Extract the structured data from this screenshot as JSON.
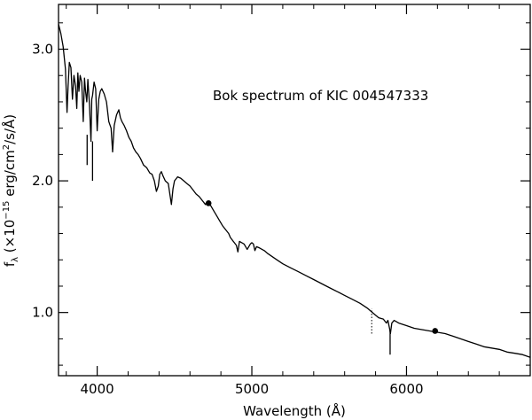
{
  "chart_data": {
    "type": "line",
    "title": "",
    "annotation": "Bok spectrum of KIC 004547333",
    "xlabel": "Wavelength (Å)",
    "ylabel": {
      "prefix": "f",
      "sub": "λ",
      "open": " (×10",
      "exp": "−15",
      "middle": " erg/cm",
      "exp2": "2",
      "suffix": "/s/Å)"
    },
    "xlim": [
      3750,
      6800
    ],
    "ylim": [
      0.52,
      3.34
    ],
    "xticks": [
      4000,
      5000,
      6000
    ],
    "xtick_labels": [
      "4000",
      "5000",
      "6000"
    ],
    "yticks": [
      1.0,
      2.0,
      3.0
    ],
    "ytick_labels": [
      "1.0",
      "2.0",
      "3.0"
    ],
    "series": [
      {
        "x": [
          3750,
          3765,
          3780,
          3795,
          3805,
          3812,
          3820,
          3830,
          3840,
          3850,
          3860,
          3868,
          3875,
          3882,
          3890,
          3900,
          3910,
          3918,
          3925,
          3933,
          3940,
          3950,
          3960,
          3965,
          3970,
          3980,
          3990,
          4000,
          4010,
          4020,
          4030,
          4045,
          4060,
          4075,
          4090,
          4100,
          4110,
          4125,
          4140,
          4150,
          4160,
          4175,
          4190,
          4205,
          4220,
          4235,
          4250,
          4265,
          4280,
          4300,
          4320,
          4340,
          4355,
          4370,
          4383,
          4395,
          4405,
          4415,
          4425,
          4440,
          4460,
          4480,
          4490,
          4500,
          4520,
          4540,
          4560,
          4580,
          4600,
          4620,
          4640,
          4660,
          4680,
          4700,
          4710,
          4730,
          4750,
          4770,
          4790,
          4810,
          4830,
          4850,
          4861,
          4880,
          4900,
          4910,
          4920,
          4935,
          4950,
          4970,
          4990,
          5000,
          5010,
          5020,
          5030,
          5050,
          5080,
          5100,
          5150,
          5200,
          5250,
          5300,
          5350,
          5400,
          5450,
          5500,
          5550,
          5600,
          5650,
          5700,
          5750,
          5780,
          5800,
          5820,
          5850,
          5870,
          5880,
          5890,
          5896,
          5905,
          5920,
          5950,
          6000,
          6050,
          6100,
          6150,
          6200,
          6250,
          6300,
          6350,
          6400,
          6450,
          6500,
          6550,
          6600,
          6650,
          6700,
          6750,
          6800
        ],
        "y": [
          3.19,
          3.12,
          3.02,
          2.85,
          2.52,
          2.72,
          2.9,
          2.86,
          2.62,
          2.8,
          2.72,
          2.55,
          2.82,
          2.68,
          2.8,
          2.75,
          2.45,
          2.78,
          2.68,
          2.6,
          2.77,
          2.58,
          2.3,
          2.62,
          2.65,
          2.75,
          2.7,
          2.38,
          2.62,
          2.68,
          2.7,
          2.66,
          2.6,
          2.45,
          2.4,
          2.22,
          2.42,
          2.5,
          2.54,
          2.48,
          2.45,
          2.42,
          2.38,
          2.33,
          2.3,
          2.25,
          2.22,
          2.2,
          2.17,
          2.12,
          2.1,
          2.06,
          2.05,
          2.0,
          1.92,
          1.96,
          2.05,
          2.07,
          2.04,
          2.0,
          1.98,
          1.82,
          1.94,
          2.0,
          2.03,
          2.02,
          2.0,
          1.98,
          1.96,
          1.93,
          1.9,
          1.88,
          1.85,
          1.82,
          1.84,
          1.82,
          1.78,
          1.74,
          1.7,
          1.66,
          1.63,
          1.6,
          1.57,
          1.54,
          1.51,
          1.46,
          1.54,
          1.53,
          1.52,
          1.48,
          1.52,
          1.53,
          1.52,
          1.47,
          1.5,
          1.49,
          1.47,
          1.45,
          1.41,
          1.37,
          1.34,
          1.31,
          1.28,
          1.25,
          1.22,
          1.19,
          1.16,
          1.13,
          1.1,
          1.07,
          1.03,
          1.0,
          0.98,
          0.96,
          0.95,
          0.92,
          0.94,
          0.88,
          0.84,
          0.92,
          0.94,
          0.92,
          0.9,
          0.88,
          0.87,
          0.86,
          0.85,
          0.84,
          0.82,
          0.8,
          0.78,
          0.76,
          0.74,
          0.73,
          0.72,
          0.7,
          0.69,
          0.68,
          0.66
        ]
      }
    ],
    "markers": [
      {
        "x": 4720,
        "y": 1.83
      },
      {
        "x": 6185,
        "y": 0.86
      }
    ],
    "solid_ticks": [
      {
        "x": 3935,
        "y0": 2.12,
        "y1": 2.35
      },
      {
        "x": 3970,
        "y0": 2.0,
        "y1": 2.3
      },
      {
        "x": 5894,
        "y0": 0.68,
        "y1": 0.86
      }
    ],
    "dotted_ticks": [
      {
        "x": 5775,
        "y0": 0.84,
        "y1": 1.03
      }
    ],
    "grid": false,
    "line_color": "#000000"
  }
}
